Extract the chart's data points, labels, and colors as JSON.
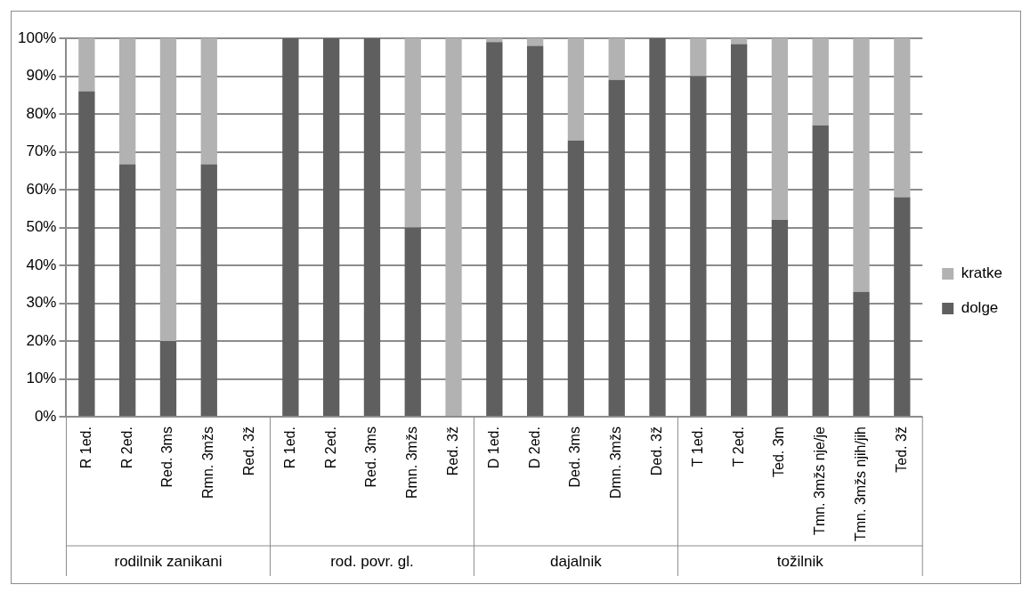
{
  "chart_data": {
    "type": "bar",
    "stacked": true,
    "grid": "y",
    "legend": "right",
    "categories": [
      "R 1ed.",
      "R 2ed.",
      "Red. 3ms",
      "Rmn. 3mžs",
      "Red. 3ž",
      "R 1ed.",
      "R 2ed.",
      "Red. 3ms",
      "Rmn. 3mžs",
      "Red. 3ž",
      "D 1ed.",
      "D 2ed.",
      "Ded. 3ms",
      "Dmn. 3mžs",
      "Ded. 3ž",
      "T 1ed.",
      "T 2ed.",
      "Ted. 3m",
      "Tmn. 3mžs nje/je",
      "Tmn. 3mžs njih/jih",
      "Ted. 3ž"
    ],
    "series": [
      {
        "name": "dolge",
        "color": "#5f5f5f",
        "values": [
          86,
          66.7,
          20,
          66.7,
          0,
          100,
          100,
          100,
          50,
          0,
          99,
          98,
          73,
          89,
          100,
          90,
          98.5,
          52,
          77,
          33,
          58
        ]
      },
      {
        "name": "kratke",
        "color": "#b2b2b2",
        "values": [
          14,
          33.3,
          80,
          33.3,
          0,
          0,
          0,
          0,
          50,
          100,
          1,
          2,
          27,
          11,
          0,
          10,
          1.5,
          48,
          23,
          67,
          42
        ]
      }
    ],
    "ylim": [
      0,
      100
    ],
    "yticks": [
      {
        "value": 0,
        "label": "0%"
      },
      {
        "value": 10,
        "label": "10%"
      },
      {
        "value": 20,
        "label": "20%"
      },
      {
        "value": 30,
        "label": "30%"
      },
      {
        "value": 40,
        "label": "40%"
      },
      {
        "value": 50,
        "label": "50%"
      },
      {
        "value": 60,
        "label": "60%"
      },
      {
        "value": 70,
        "label": "70%"
      },
      {
        "value": 80,
        "label": "80%"
      },
      {
        "value": 90,
        "label": "90%"
      },
      {
        "value": 100,
        "label": "100%"
      }
    ],
    "annotations": [
      "rodilnik zanikani",
      "rod. povr. gl.",
      "dajalnik",
      "tožilnik"
    ]
  }
}
